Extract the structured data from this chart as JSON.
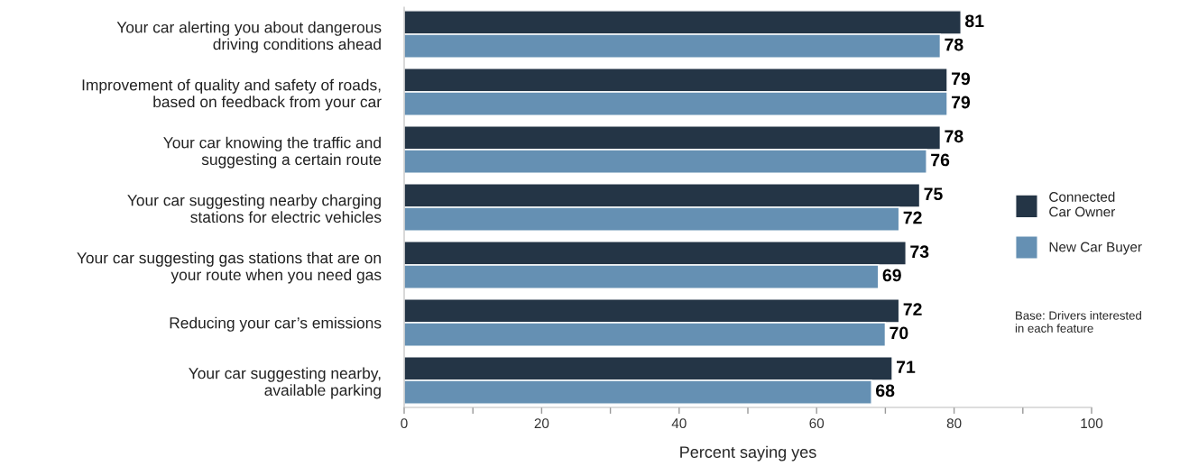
{
  "chart_data": {
    "type": "bar",
    "orientation": "horizontal",
    "categories": [
      "Your car alerting you about dangerous\ndriving conditions ahead",
      "Improvement of quality and safety of roads,\nbased on feedback from your car",
      "Your car knowing the traffic and\nsuggesting a certain route",
      "Your car suggesting nearby charging\nstations for electric vehicles",
      "Your car suggesting gas stations that are on\nyour route when you need gas",
      "Reducing your car’s emissions",
      "Your car suggesting nearby,\navailable parking"
    ],
    "series": [
      {
        "name": "Connected\nCar Owner",
        "color": "#243546",
        "values": [
          81,
          79,
          78,
          75,
          73,
          72,
          71
        ]
      },
      {
        "name": "New Car Buyer",
        "color": "#6590b3",
        "values": [
          78,
          79,
          76,
          72,
          69,
          70,
          68
        ]
      }
    ],
    "xlabel": "Percent saying yes",
    "xlim": [
      0,
      100
    ],
    "xticks": [
      0,
      {
        "value": 10,
        "label": null
      },
      20,
      {
        "value": 30,
        "label": null
      },
      40,
      {
        "value": 50,
        "label": null
      },
      60,
      {
        "value": 70,
        "label": null
      },
      80,
      {
        "value": 90,
        "label": null
      },
      100
    ],
    "data_labels": true,
    "legend": "right",
    "grid": false,
    "annotations": [
      "Base: Drivers interested\nin each feature"
    ]
  }
}
